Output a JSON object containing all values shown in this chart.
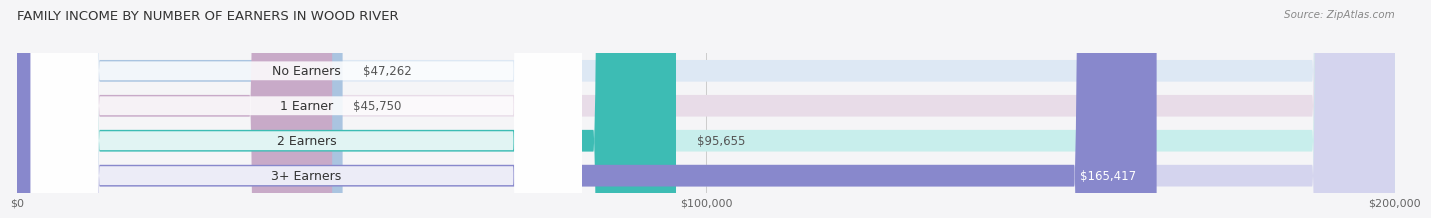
{
  "title": "FAMILY INCOME BY NUMBER OF EARNERS IN WOOD RIVER",
  "source": "Source: ZipAtlas.com",
  "categories": [
    "No Earners",
    "1 Earner",
    "2 Earners",
    "3+ Earners"
  ],
  "values": [
    47262,
    45750,
    95655,
    165417
  ],
  "bar_colors": [
    "#aac4e0",
    "#c8aac8",
    "#3dbcb4",
    "#8888cc"
  ],
  "bar_bg_colors": [
    "#dde8f4",
    "#e8dce8",
    "#c8eeec",
    "#d4d4ee"
  ],
  "label_colors": [
    "#333333",
    "#333333",
    "#333333",
    "#ffffff"
  ],
  "xlim": [
    0,
    200000
  ],
  "background_color": "#f0f0f0",
  "bar_bg_color": "#e8e8ee",
  "value_labels": [
    "$47,262",
    "$45,750",
    "$95,655",
    "$165,417"
  ],
  "xtick_labels": [
    "$0",
    "$100,000",
    "$200,000"
  ],
  "xtick_values": [
    0,
    100000,
    200000
  ]
}
